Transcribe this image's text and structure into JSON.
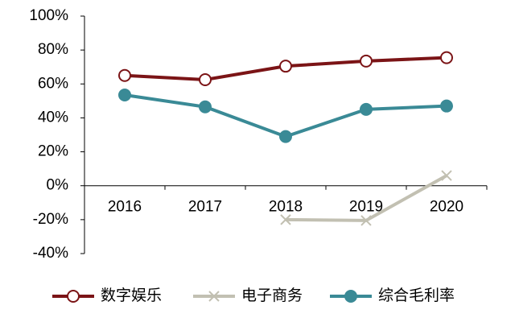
{
  "chart_data": {
    "type": "line",
    "categories": [
      "2016",
      "2017",
      "2018",
      "2019",
      "2020"
    ],
    "series": [
      {
        "name": "数字娱乐",
        "color": "#7b1416",
        "marker": "open-circle",
        "values": [
          65,
          62.5,
          70.5,
          73.5,
          75.5
        ]
      },
      {
        "name": "电子商务",
        "color": "#c2c0b2",
        "marker": "x",
        "values": [
          null,
          null,
          -20,
          -20.5,
          6
        ]
      },
      {
        "name": "综合毛利率",
        "color": "#3a8a96",
        "marker": "circle",
        "values": [
          53.5,
          46.5,
          29,
          45,
          47
        ]
      }
    ],
    "ylim": [
      -40,
      100
    ],
    "yticks": [
      {
        "value": -40,
        "label": "-40%"
      },
      {
        "value": -20,
        "label": "-20%"
      },
      {
        "value": 0,
        "label": "0%"
      },
      {
        "value": 20,
        "label": "20%"
      },
      {
        "value": 40,
        "label": "40%"
      },
      {
        "value": 60,
        "label": "60%"
      },
      {
        "value": 80,
        "label": "80%"
      },
      {
        "value": 100,
        "label": "100%"
      }
    ],
    "grid": false,
    "legend": "bottom"
  }
}
